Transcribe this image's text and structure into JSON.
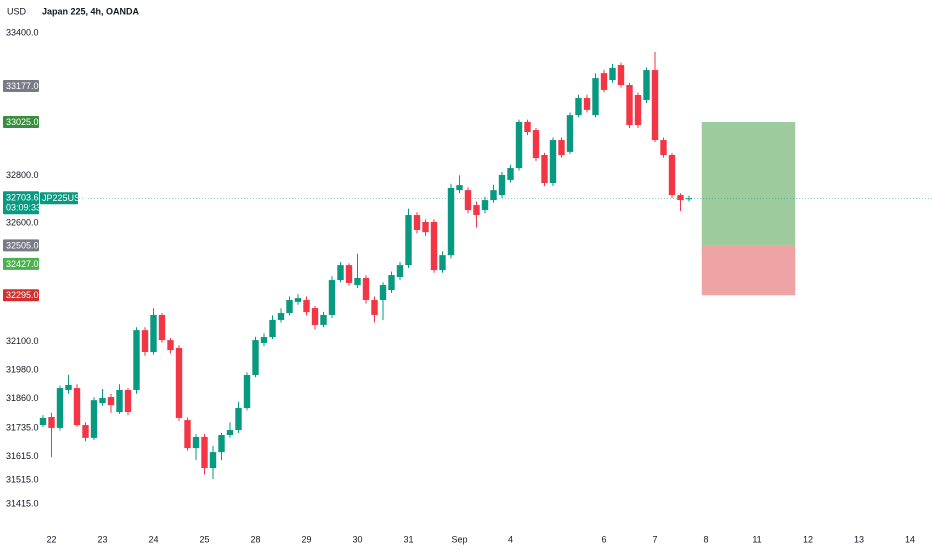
{
  "chart_data": {
    "type": "candlestick",
    "currency": "USD",
    "title": "Japan 225, 4h, OANDA",
    "categories": [
      null,
      "22",
      null,
      null,
      null,
      null,
      null,
      "23",
      null,
      null,
      null,
      null,
      null,
      "24",
      null,
      null,
      null,
      null,
      null,
      "25",
      null,
      null,
      null,
      null,
      null,
      "28",
      null,
      null,
      null,
      null,
      null,
      "29",
      null,
      null,
      null,
      null,
      null,
      "30",
      null,
      null,
      null,
      null,
      null,
      "31",
      null,
      null,
      null,
      null,
      null,
      "Sep",
      null,
      null,
      null,
      null,
      null,
      "4",
      null,
      null,
      null,
      null,
      null,
      null,
      null,
      null,
      null,
      null,
      "6",
      null,
      null,
      null,
      null,
      null,
      "7",
      null,
      null,
      null,
      null,
      null,
      "8",
      null,
      null,
      null,
      null,
      null,
      "11",
      null,
      null,
      null,
      null,
      null,
      "12",
      null,
      null,
      null,
      null,
      null,
      "13",
      null,
      null,
      null,
      null,
      null,
      "14"
    ],
    "open": [
      31748,
      31782,
      31736,
      31896,
      31904,
      31748,
      31694,
      31841,
      31866,
      31803,
      31896,
      31896,
      32148,
      32056,
      32212,
      32106,
      32073,
      31769,
      31651,
      31698,
      31567,
      31634,
      31706,
      31727,
      31820,
      31959,
      32094,
      32119,
      32191,
      32220,
      32267,
      32275,
      32241,
      32170,
      32212,
      32359,
      32422,
      32338,
      32368,
      32275,
      32275,
      32317,
      32372,
      32422,
      32633,
      32604,
      32604,
      32401,
      32464,
      32738,
      32738,
      32675,
      32654,
      32696,
      32717,
      32781,
      32831,
      33025,
      32991,
      32886,
      32768,
      32949,
      32899,
      33054,
      33126,
      33054,
      33231,
      33202,
      33265,
      33181,
      33139,
      33118,
      33244,
      32949,
      32886,
      32717,
      32700,
      null,
      null,
      null,
      null,
      null,
      null,
      null,
      null,
      null,
      null,
      null,
      null,
      null,
      null,
      null,
      null,
      null,
      null,
      null,
      null,
      null,
      null,
      null,
      null,
      null,
      null
    ],
    "high": [
      31790,
      31800,
      31915,
      31960,
      31920,
      31760,
      31865,
      31900,
      31880,
      31920,
      31905,
      32160,
      32160,
      32240,
      32220,
      32115,
      32085,
      31780,
      31710,
      31710,
      31660,
      31715,
      31760,
      31845,
      31970,
      32120,
      32135,
      32210,
      32240,
      32290,
      32300,
      32290,
      32250,
      32225,
      32375,
      32435,
      32430,
      32470,
      32380,
      32290,
      32350,
      32395,
      32435,
      32660,
      32645,
      32615,
      32615,
      32480,
      32765,
      32800,
      32750,
      32690,
      32710,
      32760,
      32815,
      32845,
      33035,
      33035,
      33000,
      32895,
      32960,
      32960,
      33065,
      33140,
      33140,
      33230,
      33245,
      33270,
      33275,
      33190,
      33150,
      33255,
      33320,
      32960,
      32895,
      32725,
      32715,
      null,
      null,
      null,
      null,
      null,
      null,
      null,
      null,
      null,
      null,
      null,
      null,
      null,
      null,
      null,
      null,
      null,
      null,
      null,
      null,
      null,
      null,
      null,
      null,
      null,
      null
    ],
    "low": [
      31740,
      31613,
      31725,
      31880,
      31740,
      31680,
      31685,
      31830,
      31800,
      31795,
      31790,
      31880,
      32040,
      32045,
      32095,
      32050,
      31765,
      31640,
      31600,
      31540,
      31520,
      31600,
      31695,
      31715,
      31810,
      31950,
      32080,
      32110,
      32180,
      32210,
      32255,
      32210,
      32150,
      32160,
      32200,
      32350,
      32335,
      32325,
      32260,
      32180,
      32190,
      32305,
      32360,
      32410,
      32555,
      32545,
      32390,
      32390,
      32450,
      32725,
      32640,
      32580,
      32640,
      32685,
      32705,
      32770,
      32820,
      32970,
      32860,
      32755,
      32755,
      32875,
      32890,
      33045,
      33065,
      33045,
      33150,
      33190,
      33170,
      33000,
      33000,
      33105,
      32940,
      32875,
      32705,
      32650,
      32690,
      null,
      null,
      null,
      null,
      null,
      null,
      null,
      null,
      null,
      null,
      null,
      null,
      null,
      null,
      null,
      null,
      null,
      null,
      null,
      null,
      null,
      null,
      null,
      null,
      null,
      null
    ],
    "close": [
      31778,
      31736,
      31904,
      31917,
      31748,
      31694,
      31853,
      31862,
      31832,
      31896,
      31803,
      32148,
      32056,
      32212,
      32106,
      32064,
      31778,
      31651,
      31698,
      31567,
      31634,
      31706,
      31727,
      31820,
      31959,
      32106,
      32119,
      32191,
      32220,
      32275,
      32283,
      32224,
      32170,
      32212,
      32359,
      32422,
      32347,
      32368,
      32275,
      32212,
      32338,
      32380,
      32422,
      32633,
      32570,
      32561,
      32401,
      32464,
      32747,
      32759,
      32654,
      32633,
      32696,
      32738,
      32802,
      32831,
      33025,
      32983,
      32873,
      32768,
      32949,
      32886,
      33054,
      33126,
      33076,
      33210,
      33160,
      33253,
      33181,
      33012,
      33012,
      33244,
      32949,
      32886,
      32717,
      32696,
      32703.6,
      null,
      null,
      null,
      null,
      null,
      null,
      null,
      null,
      null,
      null,
      null,
      null,
      null,
      null,
      null,
      null,
      null,
      null,
      null,
      null,
      null,
      null,
      null,
      null,
      null,
      null
    ],
    "up_color": "#089981",
    "down_color": "#f23645",
    "ylim": [
      31348,
      33497
    ],
    "yticks": [
      {
        "value": 33400,
        "label": "33400.0"
      },
      {
        "value": 32800,
        "label": "32800.0"
      },
      {
        "value": 32600,
        "label": "32600.0"
      },
      {
        "value": 32100,
        "label": "32100.0"
      },
      {
        "value": 31980,
        "label": "31980.0"
      },
      {
        "value": 31860,
        "label": "31860.0"
      },
      {
        "value": 31735,
        "label": "31735.0"
      },
      {
        "value": 31615,
        "label": "31615.0"
      },
      {
        "value": 31515,
        "label": "31515.0"
      },
      {
        "value": 31415,
        "label": "31415.0"
      }
    ],
    "position": {
      "x_range": [
        77.5,
        88.5
      ],
      "target": 33025,
      "entry": 32505,
      "stop": 32295,
      "profit_color": "#9dcb9d",
      "loss_color": "#eea3a5"
    },
    "price_badges": [
      {
        "value": 33177,
        "label": "33177.0",
        "color": "#787b86"
      },
      {
        "value": 33025,
        "label": "33025.0",
        "color": "#388e3c"
      },
      {
        "value": 32505,
        "label": "32505.0",
        "color": "#787b86"
      },
      {
        "value": 32427,
        "label": "32427.0",
        "color": "#4caf50"
      },
      {
        "value": 32295,
        "label": "32295.0",
        "color": "#d32f2f"
      }
    ],
    "current_price": {
      "value": 32703.6,
      "label": "32703.6",
      "countdown": "03:09:33",
      "symbol": "JP225USD",
      "color": "#089981"
    }
  }
}
